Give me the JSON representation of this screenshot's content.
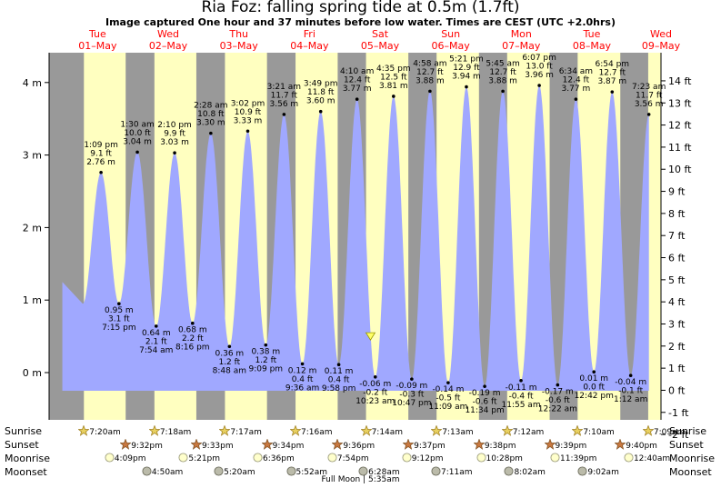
{
  "header": {
    "title": "Ria Foz: falling  spring tide at 0.5m (1.7ft)",
    "subtitle": "Image captured One hour and 37 minutes before low water. Times are CEST (UTC +2.0hrs)"
  },
  "days": [
    {
      "dow": "Tue",
      "date": "01–May",
      "t": 0
    },
    {
      "dow": "Wed",
      "date": "02–May",
      "t": 24
    },
    {
      "dow": "Thu",
      "date": "03–May",
      "t": 48
    },
    {
      "dow": "Fri",
      "date": "04–May",
      "t": 72
    },
    {
      "dow": "Sat",
      "date": "05–May",
      "t": 96
    },
    {
      "dow": "Sun",
      "date": "06–May",
      "t": 120
    },
    {
      "dow": "Mon",
      "date": "07–May",
      "t": 144
    },
    {
      "dow": "Tue",
      "date": "08–May",
      "t": 168
    },
    {
      "dow": "Wed",
      "date": "09–May",
      "t": 192
    }
  ],
  "chart_data": {
    "type": "area",
    "title": "Ria Foz: falling  spring tide at 0.5m (1.7ft)",
    "x_unit": "hours after 00:00 Tue 01-May (CEST)",
    "xlim": [
      -4.5,
      203.5
    ],
    "ylim": [
      -0.25,
      4.45
    ],
    "y_ticks_m": [
      "0 m",
      "1 m",
      "2 m",
      "3 m",
      "4 m"
    ],
    "y_ticks_m_values": [
      0,
      1,
      2,
      3,
      4
    ],
    "y_ticks_ft": [
      "-2 ft",
      "-1 ft",
      "0 ft",
      "1 ft",
      "2 ft",
      "3 ft",
      "4 ft",
      "5 ft",
      "6 ft",
      "7 ft",
      "8 ft",
      "9 ft",
      "10 ft",
      "11 ft",
      "12 ft",
      "13 ft",
      "14 ft"
    ],
    "y_ticks_ft_values": [
      -2,
      -1,
      0,
      1,
      2,
      3,
      4,
      5,
      6,
      7,
      8,
      9,
      10,
      11,
      12,
      13,
      14
    ],
    "daylight": [
      {
        "start": 7.33,
        "end": 21.53
      },
      {
        "start": 31.3,
        "end": 45.55
      },
      {
        "start": 55.28,
        "end": 69.57
      },
      {
        "start": 79.27,
        "end": 93.6
      },
      {
        "start": 103.23,
        "end": 117.62
      },
      {
        "start": 127.22,
        "end": 141.63
      },
      {
        "start": 151.2,
        "end": 165.65
      },
      {
        "start": 175.17,
        "end": 189.67
      },
      {
        "start": 199.15,
        "end": 203.5
      }
    ],
    "extremes": [
      {
        "t": 13.15,
        "h": 2.76,
        "type": "high",
        "time": "1:09 pm",
        "ft": "9.1 ft",
        "m": "2.76 m"
      },
      {
        "t": 19.25,
        "h": 0.95,
        "type": "low",
        "time": "7:15 pm",
        "ft": "3.1 ft",
        "m": "0.95 m"
      },
      {
        "t": 25.5,
        "h": 3.04,
        "type": "high",
        "time": "1:30 am",
        "ft": "10.0 ft",
        "m": "3.04 m"
      },
      {
        "t": 31.9,
        "h": 0.64,
        "type": "low",
        "time": "7:54 am",
        "ft": "2.1 ft",
        "m": "0.64 m"
      },
      {
        "t": 38.17,
        "h": 3.03,
        "type": "high",
        "time": "2:10 pm",
        "ft": "9.9 ft",
        "m": "3.03 m"
      },
      {
        "t": 44.27,
        "h": 0.68,
        "type": "low",
        "time": "8:16 pm",
        "ft": "2.2 ft",
        "m": "0.68 m"
      },
      {
        "t": 50.47,
        "h": 3.3,
        "type": "high",
        "time": "2:28 am",
        "ft": "10.8 ft",
        "m": "3.30 m"
      },
      {
        "t": 56.8,
        "h": 0.36,
        "type": "low",
        "time": "8:48 am",
        "ft": "1.2 ft",
        "m": "0.36 m"
      },
      {
        "t": 63.03,
        "h": 3.33,
        "type": "high",
        "time": "3:02 pm",
        "ft": "10.9 ft",
        "m": "3.33 m"
      },
      {
        "t": 69.15,
        "h": 0.38,
        "type": "low",
        "time": "9:09 pm",
        "ft": "1.2 ft",
        "m": "0.38 m"
      },
      {
        "t": 75.35,
        "h": 3.56,
        "type": "high",
        "time": "3:21 am",
        "ft": "11.7 ft",
        "m": "3.56 m"
      },
      {
        "t": 81.6,
        "h": 0.12,
        "type": "low",
        "time": "9:36 am",
        "ft": "0.4 ft",
        "m": "0.12 m"
      },
      {
        "t": 87.82,
        "h": 3.6,
        "type": "high",
        "time": "3:49 pm",
        "ft": "11.8 ft",
        "m": "3.60 m"
      },
      {
        "t": 93.97,
        "h": 0.11,
        "type": "low",
        "time": "9:58 pm",
        "ft": "0.4 ft",
        "m": "0.11 m"
      },
      {
        "t": 100.17,
        "h": 3.77,
        "type": "high",
        "time": "4:10 am",
        "ft": "12.4 ft",
        "m": "3.77 m"
      },
      {
        "t": 106.38,
        "h": -0.06,
        "type": "low",
        "time": "10:23 am",
        "ft": "-0.2 ft",
        "m": "-0.06 m"
      },
      {
        "t": 112.58,
        "h": 3.81,
        "type": "high",
        "time": "4:35 pm",
        "ft": "12.5 ft",
        "m": "3.81 m"
      },
      {
        "t": 118.78,
        "h": -0.09,
        "type": "low",
        "time": "10:47 pm",
        "ft": "-0.3 ft",
        "m": "-0.09 m"
      },
      {
        "t": 124.97,
        "h": 3.88,
        "type": "high",
        "time": "4:58 am",
        "ft": "12.7 ft",
        "m": "3.88 m"
      },
      {
        "t": 131.15,
        "h": -0.14,
        "type": "low",
        "time": "11:09 am",
        "ft": "-0.5 ft",
        "m": "-0.14 m"
      },
      {
        "t": 137.35,
        "h": 3.94,
        "type": "high",
        "time": "5:21 pm",
        "ft": "12.9 ft",
        "m": "3.94 m"
      },
      {
        "t": 143.57,
        "h": -0.19,
        "type": "low",
        "time": "11:34 pm",
        "ft": "-0.6 ft",
        "m": "-0.19 m"
      },
      {
        "t": 149.75,
        "h": 3.88,
        "type": "high",
        "time": "5:45 am",
        "ft": "12.7 ft",
        "m": "3.88 m"
      },
      {
        "t": 155.92,
        "h": -0.11,
        "type": "low",
        "time": "11:55 am",
        "ft": "-0.4 ft",
        "m": "-0.11 m"
      },
      {
        "t": 162.12,
        "h": 3.96,
        "type": "high",
        "time": "6:07 pm",
        "ft": "13.0 ft",
        "m": "3.96 m"
      },
      {
        "t": 168.37,
        "h": -0.17,
        "type": "low",
        "time": "12:22 am",
        "ft": "-0.6 ft",
        "m": "-0.17 m"
      },
      {
        "t": 174.57,
        "h": 3.77,
        "type": "high",
        "time": "6:34 am",
        "ft": "12.4 ft",
        "m": "3.77 m"
      },
      {
        "t": 180.7,
        "h": 0.01,
        "type": "low",
        "time": "12:42 pm",
        "ft": "0.0 ft",
        "m": "0.01 m"
      },
      {
        "t": 186.9,
        "h": 3.87,
        "type": "high",
        "time": "6:54 pm",
        "ft": "12.7 ft",
        "m": "3.87 m"
      },
      {
        "t": 193.2,
        "h": -0.04,
        "type": "low",
        "time": "1:12 am",
        "ft": "-0.1 ft",
        "m": "-0.04 m"
      },
      {
        "t": 199.38,
        "h": 3.56,
        "type": "high",
        "time": "7:23 am",
        "ft": "11.7 ft",
        "m": "3.56 m"
      }
    ],
    "curve_start": {
      "t": 0,
      "h": 1.25
    },
    "current": {
      "t": 104.75,
      "h": 0.5
    }
  },
  "rows": {
    "labels": [
      "Sunrise",
      "Sunset",
      "Moonrise",
      "Moonset"
    ],
    "sunrise": [
      {
        "t": 7.33,
        "time": "7:20am"
      },
      {
        "t": 31.3,
        "time": "7:18am"
      },
      {
        "t": 55.28,
        "time": "7:17am"
      },
      {
        "t": 79.27,
        "time": "7:16am"
      },
      {
        "t": 103.23,
        "time": "7:14am"
      },
      {
        "t": 127.22,
        "time": "7:13am"
      },
      {
        "t": 151.2,
        "time": "7:12am"
      },
      {
        "t": 175.17,
        "time": "7:10am"
      },
      {
        "t": 199.15,
        "time": "7:09am"
      }
    ],
    "sunset": [
      {
        "t": 21.53,
        "time": "9:32pm"
      },
      {
        "t": 45.55,
        "time": "9:33pm"
      },
      {
        "t": 69.57,
        "time": "9:34pm"
      },
      {
        "t": 93.6,
        "time": "9:36pm"
      },
      {
        "t": 117.62,
        "time": "9:37pm"
      },
      {
        "t": 141.63,
        "time": "9:38pm"
      },
      {
        "t": 165.65,
        "time": "9:39pm"
      },
      {
        "t": 189.67,
        "time": "9:40pm"
      }
    ],
    "moonrise": [
      {
        "t": 16.15,
        "time": "4:09pm"
      },
      {
        "t": 41.35,
        "time": "5:21pm"
      },
      {
        "t": 66.6,
        "time": "6:36pm"
      },
      {
        "t": 91.9,
        "time": "7:54pm"
      },
      {
        "t": 117.2,
        "time": "9:12pm"
      },
      {
        "t": 142.47,
        "time": "10:28pm"
      },
      {
        "t": 167.65,
        "time": "11:39pm"
      },
      {
        "t": 192.67,
        "time": "12:40am"
      }
    ],
    "moonset": [
      {
        "t": 28.83,
        "time": "4:50am"
      },
      {
        "t": 53.33,
        "time": "5:20am"
      },
      {
        "t": 77.87,
        "time": "5:52am"
      },
      {
        "t": 102.47,
        "time": "6:28am"
      },
      {
        "t": 127.18,
        "time": "7:11am"
      },
      {
        "t": 152.03,
        "time": "8:02am"
      },
      {
        "t": 177.03,
        "time": "9:02am"
      }
    ],
    "full_moon": "Full Moon | 5:35am"
  },
  "colors": {
    "night": "#999999",
    "day": "#ffffc0",
    "water": "#a0a8ff",
    "day_label": "#ff0000",
    "marker": "#ffff66"
  }
}
